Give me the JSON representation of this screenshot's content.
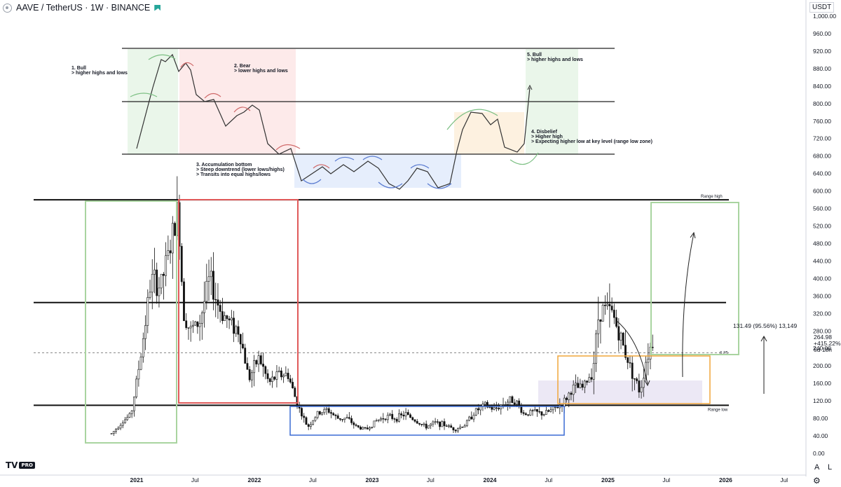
{
  "header": {
    "title": "AAVE / TetherUS · 1W · BINANCE"
  },
  "price_scale": {
    "currency": "USDT",
    "last_price": "264.98",
    "change": "+415.22%",
    "countdown": "5d 18h"
  },
  "footer": {
    "auto_label": "A",
    "log_label": "L",
    "brand_badge": "PRO"
  },
  "chart_data": {
    "type": "candlestick",
    "symbol": "AAVE / TetherUS",
    "interval": "1W",
    "exchange": "BINANCE",
    "y_range": [
      0,
      1000
    ],
    "y_ticks": [
      0,
      40,
      80,
      120,
      160,
      200,
      240,
      280,
      320,
      360,
      400,
      440,
      480,
      520,
      560,
      600,
      640,
      680,
      720,
      760,
      800,
      840,
      880,
      920,
      960,
      1000
    ],
    "y_tick_labels": [
      "0.00",
      "40.00",
      "80.00",
      "120.00",
      "160.00",
      "200.00",
      "240.00",
      "280.00",
      "320.00",
      "360.00",
      "400.00",
      "440.00",
      "480.00",
      "520.00",
      "560.00",
      "600.00",
      "640.00",
      "680.00",
      "720.00",
      "760.00",
      "800.00",
      "840.00",
      "880.00",
      "920.00",
      "960.00",
      "1,000.00"
    ],
    "x_ticks": [
      "2021",
      "Jul",
      "2022",
      "Jul",
      "2023",
      "Jul",
      "2024",
      "Jul",
      "2025",
      "Jul",
      "2026",
      "Jul"
    ],
    "x_range": [
      "2020-09-01",
      "2026-09-01"
    ],
    "grid": false,
    "weekly_closes": [
      {
        "date": "2020-10-15",
        "close": 45
      },
      {
        "date": "2020-11-15",
        "close": 70
      },
      {
        "date": "2020-12-15",
        "close": 90
      },
      {
        "date": "2021-01-15",
        "close": 230
      },
      {
        "date": "2021-02-15",
        "close": 400
      },
      {
        "date": "2021-03-15",
        "close": 380
      },
      {
        "date": "2021-04-15",
        "close": 470
      },
      {
        "date": "2021-05-10",
        "close": 560
      },
      {
        "date": "2021-05-25",
        "close": 330
      },
      {
        "date": "2021-06-15",
        "close": 280
      },
      {
        "date": "2021-07-15",
        "close": 300
      },
      {
        "date": "2021-08-15",
        "close": 400
      },
      {
        "date": "2021-09-15",
        "close": 330
      },
      {
        "date": "2021-10-15",
        "close": 300
      },
      {
        "date": "2021-11-15",
        "close": 280
      },
      {
        "date": "2021-12-15",
        "close": 170
      },
      {
        "date": "2022-01-15",
        "close": 220
      },
      {
        "date": "2022-02-15",
        "close": 160
      },
      {
        "date": "2022-03-15",
        "close": 180
      },
      {
        "date": "2022-04-15",
        "close": 180
      },
      {
        "date": "2022-05-15",
        "close": 110
      },
      {
        "date": "2022-06-15",
        "close": 60
      },
      {
        "date": "2022-07-15",
        "close": 90
      },
      {
        "date": "2022-08-15",
        "close": 100
      },
      {
        "date": "2022-09-15",
        "close": 80
      },
      {
        "date": "2022-10-15",
        "close": 80
      },
      {
        "date": "2022-11-15",
        "close": 60
      },
      {
        "date": "2022-12-15",
        "close": 55
      },
      {
        "date": "2023-01-15",
        "close": 75
      },
      {
        "date": "2023-02-15",
        "close": 85
      },
      {
        "date": "2023-03-15",
        "close": 80
      },
      {
        "date": "2023-04-15",
        "close": 90
      },
      {
        "date": "2023-05-15",
        "close": 75
      },
      {
        "date": "2023-06-15",
        "close": 60
      },
      {
        "date": "2023-07-15",
        "close": 70
      },
      {
        "date": "2023-08-15",
        "close": 65
      },
      {
        "date": "2023-09-15",
        "close": 55
      },
      {
        "date": "2023-10-15",
        "close": 65
      },
      {
        "date": "2023-11-15",
        "close": 95
      },
      {
        "date": "2023-12-15",
        "close": 110
      },
      {
        "date": "2024-01-15",
        "close": 100
      },
      {
        "date": "2024-02-15",
        "close": 115
      },
      {
        "date": "2024-03-15",
        "close": 125
      },
      {
        "date": "2024-04-15",
        "close": 90
      },
      {
        "date": "2024-05-15",
        "close": 95
      },
      {
        "date": "2024-06-15",
        "close": 90
      },
      {
        "date": "2024-07-15",
        "close": 100
      },
      {
        "date": "2024-08-15",
        "close": 115
      },
      {
        "date": "2024-09-15",
        "close": 150
      },
      {
        "date": "2024-10-15",
        "close": 150
      },
      {
        "date": "2024-11-15",
        "close": 190
      },
      {
        "date": "2024-12-05",
        "close": 330
      },
      {
        "date": "2024-12-20",
        "close": 330
      },
      {
        "date": "2025-01-15",
        "close": 320
      },
      {
        "date": "2025-02-15",
        "close": 250
      },
      {
        "date": "2025-03-15",
        "close": 190
      },
      {
        "date": "2025-04-10",
        "close": 140
      },
      {
        "date": "2025-05-01",
        "close": 220
      },
      {
        "date": "2025-05-25",
        "close": 265
      }
    ],
    "horizontal_levels": [
      {
        "label": "Range high",
        "value": 580
      },
      {
        "value": 345
      },
      {
        "label": "0.25",
        "value": 230
      },
      {
        "label": "Range low",
        "value": 110
      }
    ],
    "measurement": {
      "label": "131.49 (95.56%) 13,149"
    },
    "schematic_levels": [
      685,
      805,
      925
    ],
    "annotations": [
      {
        "title": "1. Bull",
        "detail": "> higher highs and lows"
      },
      {
        "title": "2. Bear",
        "detail": "> lower highs and lows"
      },
      {
        "title": "3. Accumulation bottom",
        "detail": "> Steep downtrend (lower lows/highs)",
        "detail2": "> Transits into equal highs/lows"
      },
      {
        "title": "4. Disbelief",
        "detail": "> Higher high",
        "detail2": "> Expecting higher low at key level (range low zone)"
      },
      {
        "title": "5. Bull",
        "detail": "> higher highs and lows"
      }
    ]
  },
  "colors": {
    "bull_box": "#a9d4a0",
    "bear_box": "#e05a5a",
    "range_box": "#3a6bd4",
    "disbelief_box": "#f0a53a",
    "bull_shade": "#eaf6ea",
    "bear_shade": "#fdeaea",
    "accum_shade": "#e6eefc",
    "disbelief_shade": "#fdf1e0",
    "purple_shade": "#ece8f5",
    "arc_red": "#d06a6a",
    "arc_green": "#7bbf82",
    "arc_blue": "#5a7bd0"
  }
}
